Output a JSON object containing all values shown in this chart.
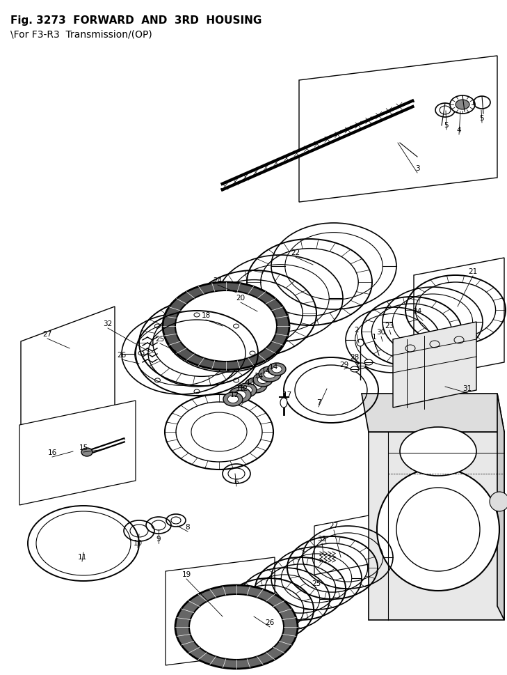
{
  "title_line1": "Fig. 3273  FORWARD  AND  3RD  HOUSING",
  "title_line2": "\\For F3-R3  Transmission/(OP)",
  "bg_color": "#ffffff",
  "fig_width": 7.29,
  "fig_height": 9.69,
  "dpi": 100
}
